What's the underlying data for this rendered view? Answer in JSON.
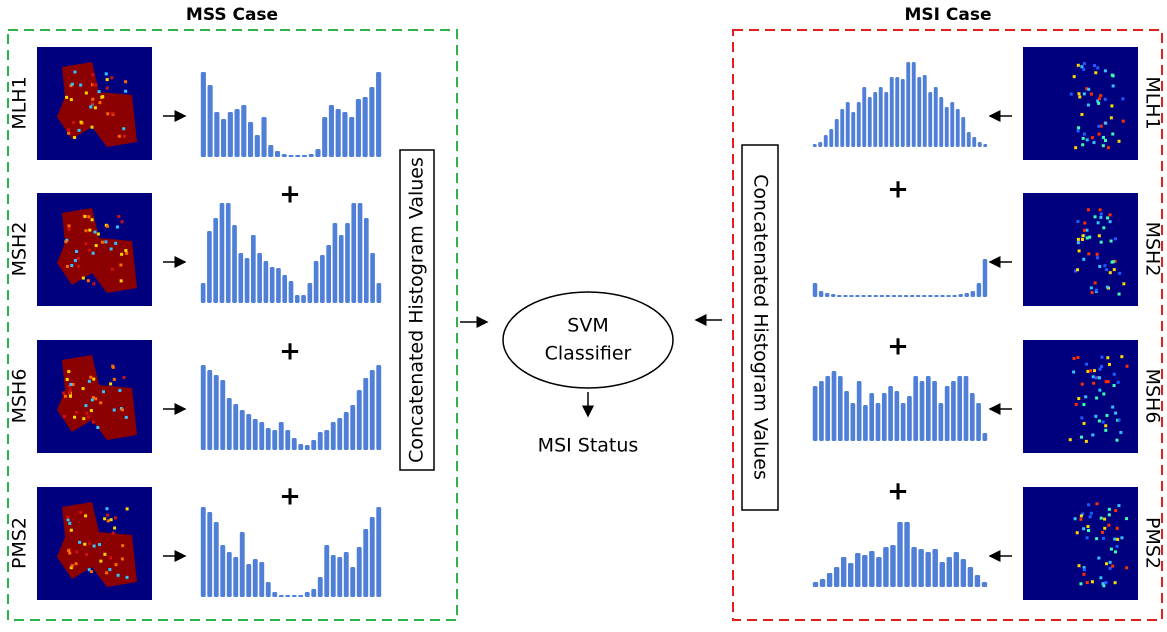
{
  "mss": {
    "title": "MSS Case",
    "cases": [
      {
        "label": "MLH1",
        "histogram": [
          85,
          72,
          45,
          38,
          45,
          48,
          52,
          35,
          22,
          40,
          12,
          6,
          3,
          2,
          2,
          2,
          3,
          8,
          40,
          52,
          48,
          45,
          40,
          58,
          60,
          70,
          85
        ]
      },
      {
        "label": "MSH2",
        "histogram": [
          20,
          72,
          85,
          100,
          100,
          78,
          50,
          45,
          68,
          50,
          42,
          36,
          35,
          28,
          22,
          8,
          8,
          20,
          42,
          48,
          58,
          80,
          68,
          80,
          100,
          100,
          85,
          50,
          20
        ]
      },
      {
        "label": "MSH6",
        "histogram": [
          85,
          80,
          75,
          70,
          52,
          46,
          40,
          36,
          31,
          28,
          22,
          20,
          28,
          20,
          12,
          6,
          5,
          10,
          18,
          20,
          28,
          32,
          38,
          45,
          60,
          72,
          80,
          85
        ]
      },
      {
        "label": "PMS2",
        "histogram": [
          90,
          85,
          75,
          52,
          45,
          40,
          65,
          33,
          38,
          35,
          15,
          5,
          2,
          2,
          2,
          2,
          5,
          8,
          20,
          52,
          42,
          40,
          45,
          30,
          50,
          68,
          80,
          90
        ]
      }
    ],
    "concat": "Concatenated  Histogram Values"
  },
  "msi": {
    "title": "MSI Case",
    "cases": [
      {
        "label": "MLH1",
        "histogram": [
          3,
          5,
          12,
          18,
          28,
          38,
          45,
          35,
          45,
          60,
          50,
          55,
          60,
          55,
          70,
          70,
          68,
          85,
          85,
          70,
          72,
          55,
          60,
          50,
          40,
          45,
          38,
          30,
          15,
          10,
          5,
          3
        ]
      },
      {
        "label": "MSH2",
        "histogram": [
          14,
          6,
          4,
          3,
          2,
          2,
          2,
          2,
          2,
          2,
          2,
          2,
          2,
          2,
          2,
          2,
          2,
          2,
          2,
          2,
          2,
          2,
          2,
          2,
          3,
          4,
          6,
          14,
          38
        ]
      },
      {
        "label": "MSH6",
        "histogram": [
          55,
          60,
          65,
          70,
          65,
          50,
          38,
          60,
          36,
          48,
          38,
          48,
          55,
          50,
          38,
          45,
          65,
          60,
          65,
          60,
          38,
          55,
          60,
          65,
          65,
          48,
          38,
          8
        ]
      },
      {
        "label": "PMS2",
        "histogram": [
          5,
          8,
          14,
          20,
          30,
          24,
          34,
          32,
          36,
          30,
          40,
          42,
          65,
          65,
          40,
          38,
          35,
          38,
          25,
          30,
          35,
          28,
          20,
          12,
          5
        ]
      }
    ],
    "concat": "Concatenated  Histogram Values"
  },
  "plus_sign": "+",
  "classifier": {
    "line1": "SVM",
    "line2": "Classifier"
  },
  "output": "MSI Status"
}
